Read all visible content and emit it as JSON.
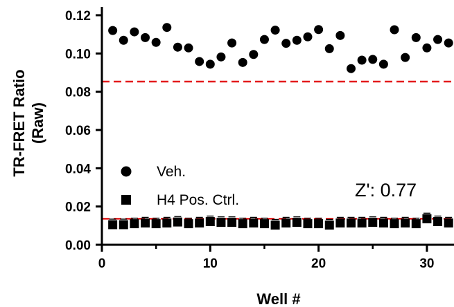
{
  "chart_data": {
    "type": "scatter",
    "xlabel": "Well #",
    "ylabel_line1": "TR-FRET Ratio",
    "ylabel_line2": "(Raw)",
    "xlim": [
      0,
      32.5
    ],
    "ylim": [
      0,
      0.12
    ],
    "x_ticks": [
      0,
      10,
      20,
      30
    ],
    "x_tick_labels": [
      "0",
      "10",
      "20",
      "30"
    ],
    "y_ticks": [
      0,
      0.02,
      0.04,
      0.06,
      0.08,
      0.1,
      0.12
    ],
    "y_tick_labels": [
      "0.00",
      "0.02",
      "0.04",
      "0.06",
      "0.08",
      "0.10",
      "0.12"
    ],
    "grid": false,
    "legend_position": "left-middle",
    "annotation": "Z': 0.77",
    "series": [
      {
        "name": "Veh.",
        "marker": "circle",
        "color": "#000000",
        "x": [
          1,
          2,
          3,
          4,
          5,
          6,
          7,
          8,
          9,
          10,
          11,
          12,
          13,
          14,
          15,
          16,
          17,
          18,
          19,
          20,
          21,
          22,
          23,
          24,
          25,
          26,
          27,
          28,
          29,
          30,
          31,
          32
        ],
        "values": [
          0.112,
          0.1069,
          0.1113,
          0.1083,
          0.1058,
          0.1136,
          0.1033,
          0.1029,
          0.0958,
          0.0944,
          0.0982,
          0.1055,
          0.0953,
          0.0995,
          0.1073,
          0.1122,
          0.1053,
          0.1069,
          0.1087,
          0.1125,
          0.1025,
          0.1094,
          0.0921,
          0.0965,
          0.0969,
          0.0944,
          0.1124,
          0.0979,
          0.1083,
          0.1029,
          0.1073,
          0.1055
        ]
      },
      {
        "name": "H4 Pos. Ctrl.",
        "marker": "square",
        "color": "#000000",
        "x": [
          1,
          2,
          3,
          4,
          5,
          6,
          7,
          8,
          9,
          10,
          11,
          12,
          13,
          14,
          15,
          16,
          17,
          18,
          19,
          20,
          21,
          22,
          23,
          24,
          25,
          26,
          27,
          28,
          29,
          30,
          31,
          32
        ],
        "values": [
          0.0105,
          0.0105,
          0.011,
          0.0114,
          0.011,
          0.0114,
          0.0119,
          0.011,
          0.0114,
          0.0121,
          0.0117,
          0.0117,
          0.011,
          0.0114,
          0.011,
          0.0103,
          0.0114,
          0.0117,
          0.011,
          0.011,
          0.0103,
          0.0114,
          0.0114,
          0.0114,
          0.0117,
          0.0114,
          0.011,
          0.0114,
          0.011,
          0.0136,
          0.0121,
          0.0114
        ]
      }
    ],
    "threshold_lines": [
      {
        "value": 0.0853,
        "color": "#e31a1c",
        "style": "dashed"
      },
      {
        "value": 0.0136,
        "color": "#e31a1c",
        "style": "dashed"
      }
    ]
  }
}
